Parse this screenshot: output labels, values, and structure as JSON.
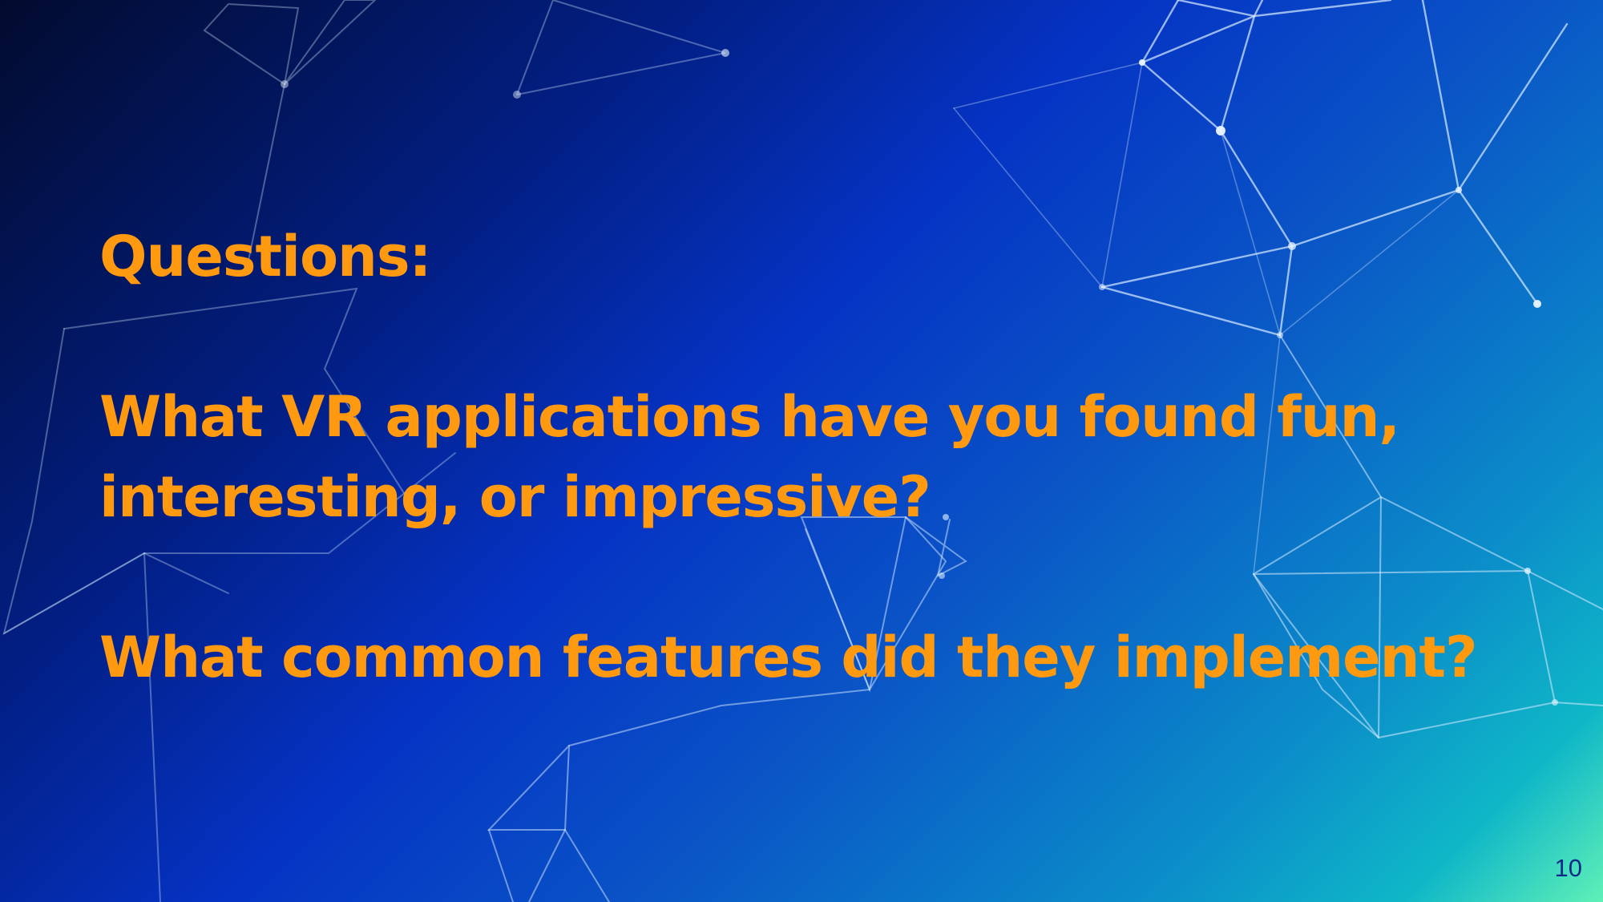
{
  "slide": {
    "heading": "Questions:",
    "question_1_line_1": "What VR applications have you found fun,",
    "question_1_line_2": "interesting, or impressive?",
    "question_2": "What common features did they implement?",
    "page_number": "10"
  },
  "colors": {
    "text_accent": "#ff9a10",
    "page_number": "#0d2a86",
    "network_lines": "#d8ecff"
  },
  "decoration": {
    "background_icon": "polygon-network-icon"
  }
}
